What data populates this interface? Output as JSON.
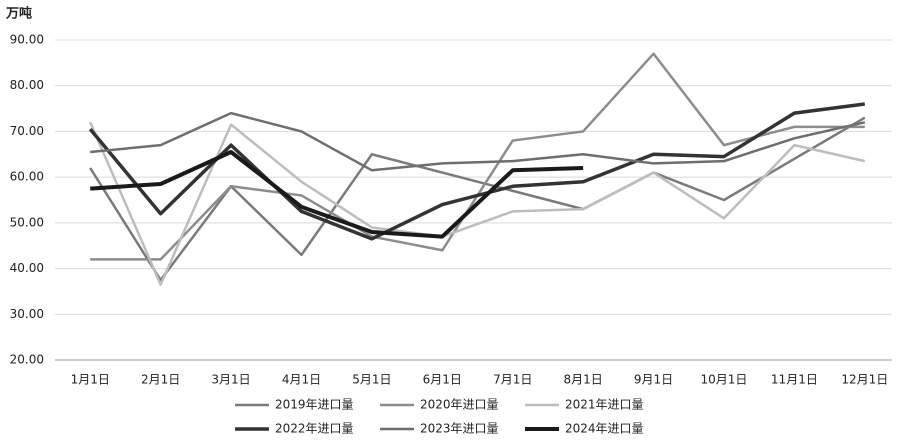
{
  "chart_data": {
    "type": "line",
    "unit": "万吨",
    "categories": [
      "1月1日",
      "2月1日",
      "3月1日",
      "4月1日",
      "5月1日",
      "6月1日",
      "7月1日",
      "8月1日",
      "9月1日",
      "10月1日",
      "11月1日",
      "12月1日"
    ],
    "ylim": [
      20,
      90
    ],
    "yticks": [
      {
        "value": 20,
        "label": "20.00"
      },
      {
        "value": 30,
        "label": "30.00"
      },
      {
        "value": 40,
        "label": "40.00"
      },
      {
        "value": 50,
        "label": "50.00"
      },
      {
        "value": 60,
        "label": "60.00"
      },
      {
        "value": 70,
        "label": "70.00"
      },
      {
        "value": 80,
        "label": "80.00"
      },
      {
        "value": 90,
        "label": "90.00"
      }
    ],
    "grid": true,
    "legend": "bottom",
    "series": [
      {
        "name": "2019年进口量",
        "color": "#7a7a7a",
        "values": [
          62,
          37.5,
          58,
          43,
          65,
          61,
          57,
          53,
          61,
          55,
          64,
          73
        ]
      },
      {
        "name": "2020年进口量",
        "color": "#8c8c8c",
        "values": [
          42,
          42,
          58,
          56,
          47,
          44,
          68,
          70,
          87,
          67,
          71,
          71
        ]
      },
      {
        "name": "2021年进口量",
        "color": "#bdbdbd",
        "values": [
          72,
          36.5,
          71.5,
          59,
          49,
          47,
          52.5,
          53,
          61,
          51,
          67,
          63.5
        ]
      },
      {
        "name": "2022年进口量",
        "color": "#333333",
        "values": [
          70.5,
          52,
          67,
          52.5,
          46.5,
          54,
          58,
          59,
          65,
          64.5,
          74,
          76
        ]
      },
      {
        "name": "2023年进口量",
        "color": "#6e6e6e",
        "values": [
          65.5,
          67,
          74,
          70,
          61.5,
          63,
          63.5,
          65,
          63,
          63.5,
          68.5,
          72
        ]
      },
      {
        "name": "2024年进口量",
        "color": "#1a1a1a",
        "values": [
          57.5,
          58.5,
          65.5,
          53.5,
          48,
          47,
          61.5,
          62,
          null,
          null,
          null,
          null
        ]
      }
    ]
  }
}
